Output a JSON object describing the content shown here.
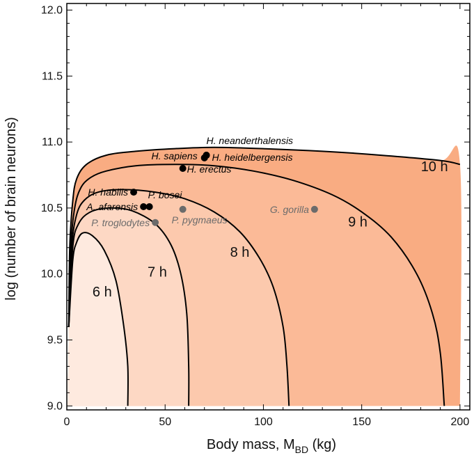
{
  "chart_data": {
    "type": "area",
    "xlabel_main": "Body mass, M",
    "xlabel_sub": "BD",
    "xlabel_unit": " (kg)",
    "ylabel": "log (number of brain neurons)",
    "xlim": [
      0,
      205
    ],
    "ylim": [
      8.97,
      12.05
    ],
    "x_ticks": [
      "0",
      "50",
      "100",
      "150",
      "200"
    ],
    "y_ticks": [
      "9.0",
      "9.5",
      "10.0",
      "10.5",
      "11.0",
      "11.5",
      "12.0"
    ],
    "contours": [
      {
        "label": "10 h",
        "label_pos": [
          187,
          10.78
        ],
        "fill": "#f9ac82",
        "points": [
          [
            1,
            9.6
          ],
          [
            1.5,
            10.2
          ],
          [
            3,
            10.55
          ],
          [
            5,
            10.72
          ],
          [
            10,
            10.83
          ],
          [
            20,
            10.9
          ],
          [
            35,
            10.93
          ],
          [
            55,
            10.95
          ],
          [
            75,
            10.96
          ],
          [
            100,
            10.95
          ],
          [
            130,
            10.93
          ],
          [
            160,
            10.9
          ],
          [
            190,
            10.86
          ],
          [
            200,
            10.83
          ],
          [
            200,
            9.0
          ],
          [
            0.5,
            9.0
          ]
        ]
      },
      {
        "label": "9 h",
        "label_pos": [
          148,
          10.36
        ],
        "fill": "#fbba97",
        "points": [
          [
            1,
            9.6
          ],
          [
            2,
            10.2
          ],
          [
            4,
            10.5
          ],
          [
            7,
            10.65
          ],
          [
            12,
            10.73
          ],
          [
            20,
            10.78
          ],
          [
            35,
            10.82
          ],
          [
            55,
            10.83
          ],
          [
            75,
            10.82
          ],
          [
            95,
            10.78
          ],
          [
            115,
            10.71
          ],
          [
            135,
            10.6
          ],
          [
            150,
            10.47
          ],
          [
            165,
            10.28
          ],
          [
            178,
            10.0
          ],
          [
            186,
            9.7
          ],
          [
            190,
            9.4
          ],
          [
            192,
            9.0
          ],
          [
            0.5,
            9.0
          ]
        ]
      },
      {
        "label": "8 h",
        "label_pos": [
          88,
          10.13
        ],
        "fill": "#fcc9ad",
        "points": [
          [
            1,
            9.6
          ],
          [
            2.5,
            10.2
          ],
          [
            5,
            10.45
          ],
          [
            9,
            10.56
          ],
          [
            16,
            10.62
          ],
          [
            28,
            10.64
          ],
          [
            45,
            10.62
          ],
          [
            60,
            10.57
          ],
          [
            75,
            10.47
          ],
          [
            88,
            10.32
          ],
          [
            98,
            10.12
          ],
          [
            105,
            9.9
          ],
          [
            110,
            9.6
          ],
          [
            112,
            9.3
          ],
          [
            113,
            9.0
          ],
          [
            0.5,
            9.0
          ]
        ]
      },
      {
        "label": "7 h",
        "label_pos": [
          46,
          9.98
        ],
        "fill": "#fdd8c4",
        "points": [
          [
            1,
            9.6
          ],
          [
            3,
            10.2
          ],
          [
            6,
            10.38
          ],
          [
            12,
            10.47
          ],
          [
            22,
            10.5
          ],
          [
            33,
            10.48
          ],
          [
            45,
            10.38
          ],
          [
            53,
            10.22
          ],
          [
            58,
            10.0
          ],
          [
            61,
            9.7
          ],
          [
            62,
            9.3
          ],
          [
            62,
            9.0
          ],
          [
            0.5,
            9.0
          ]
        ]
      },
      {
        "label": "6 h",
        "label_pos": [
          18,
          9.83
        ],
        "fill": "#feeadf",
        "points": [
          [
            1,
            9.6
          ],
          [
            3,
            10.1
          ],
          [
            5,
            10.24
          ],
          [
            8,
            10.31
          ],
          [
            13,
            10.29
          ],
          [
            19,
            10.18
          ],
          [
            25,
            9.95
          ],
          [
            29,
            9.6
          ],
          [
            31,
            9.3
          ],
          [
            31,
            9.0
          ],
          [
            0.5,
            9.0
          ]
        ]
      }
    ],
    "points": [
      {
        "name": "H. neanderthalensis",
        "x": 71,
        "y": 10.9,
        "kind": "black",
        "label_dx": 0,
        "label_dy": -16,
        "anchor": "start"
      },
      {
        "name": "H. sapiens",
        "x": 70,
        "y": 10.88,
        "kind": "black",
        "label_dx": -10,
        "label_dy": 2,
        "anchor": "end"
      },
      {
        "name": "H. heidelbergensis",
        "x": 71,
        "y": 10.9,
        "kind": "black",
        "label_dx": 8,
        "label_dy": 8,
        "anchor": "start"
      },
      {
        "name": "H. erectus",
        "x": 59,
        "y": 10.8,
        "kind": "black",
        "label_dx": 6,
        "label_dy": 6,
        "anchor": "start"
      },
      {
        "name": "H. habilis",
        "x": 34,
        "y": 10.62,
        "kind": "black",
        "label_dx": -8,
        "label_dy": 5,
        "anchor": "end"
      },
      {
        "name": "P. bosei",
        "x": 42,
        "y": 10.51,
        "kind": "black",
        "label_dx": -2,
        "label_dy": -12,
        "anchor": "start"
      },
      {
        "name": "A. afarensis",
        "x": 39,
        "y": 10.51,
        "kind": "black",
        "label_dx": -8,
        "label_dy": 5,
        "anchor": "end"
      },
      {
        "name": "P. troglodytes",
        "x": 45,
        "y": 10.39,
        "kind": "gray",
        "label_dx": -8,
        "label_dy": 5,
        "anchor": "end"
      },
      {
        "name": "P. pygmaeus",
        "x": 59,
        "y": 10.49,
        "kind": "gray",
        "label_dx": -16,
        "label_dy": 20,
        "anchor": "start"
      },
      {
        "name": "G. gorilla",
        "x": 126,
        "y": 10.49,
        "kind": "gray",
        "label_dx": -8,
        "label_dy": 5,
        "anchor": "end"
      }
    ],
    "colors": {
      "black_point": "#000000",
      "gray_point": "#6b6b6b",
      "gray_text": "#6b6b6b",
      "line": "#000000"
    }
  }
}
